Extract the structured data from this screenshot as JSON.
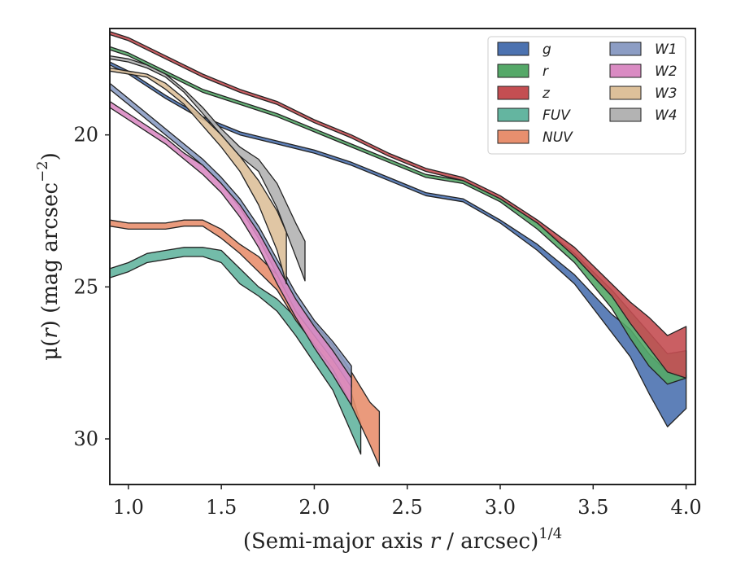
{
  "chart_data": {
    "type": "area",
    "title": "",
    "xlabel_parts": {
      "prefix": "(Semi-major axis ",
      "var": "r",
      "suffix": " / arcsec)",
      "exponent": "1/4"
    },
    "ylabel_parts": {
      "prefix": "μ(",
      "var": "r",
      "suffix": ") (mag arcsec",
      "exponent": "−2",
      "close": ")"
    },
    "xlim": [
      0.9,
      4.05
    ],
    "ylim": [
      31.5,
      16.5
    ],
    "y_inverted": true,
    "x_ticks": [
      1.0,
      1.5,
      2.0,
      2.5,
      3.0,
      3.5,
      4.0
    ],
    "x_tick_labels": [
      "1.0",
      "1.5",
      "2.0",
      "2.5",
      "3.0",
      "3.5",
      "4.0"
    ],
    "y_ticks": [
      20,
      25,
      30
    ],
    "y_tick_labels": [
      "20",
      "25",
      "30"
    ],
    "grid": false,
    "legend_placement": "top-right",
    "legend_columns": 2,
    "series": [
      {
        "name": "g",
        "color": "#4C72B0",
        "x": [
          0.9,
          1.0,
          1.2,
          1.4,
          1.6,
          1.8,
          2.0,
          2.2,
          2.4,
          2.6,
          2.8,
          3.0,
          3.2,
          3.4,
          3.6,
          3.7,
          3.8,
          3.9,
          4.0
        ],
        "y_low": [
          17.6,
          17.9,
          18.7,
          19.4,
          19.9,
          20.2,
          20.5,
          20.9,
          21.4,
          21.9,
          22.1,
          22.8,
          23.6,
          24.6,
          25.9,
          26.4,
          27.2,
          27.8,
          27.9
        ],
        "y_high": [
          17.7,
          18.0,
          18.8,
          19.5,
          20.0,
          20.3,
          20.6,
          21.0,
          21.5,
          22.0,
          22.2,
          22.9,
          23.8,
          24.9,
          26.5,
          27.3,
          28.5,
          29.6,
          29.0
        ]
      },
      {
        "name": "r",
        "color": "#55A868",
        "x": [
          0.9,
          1.0,
          1.2,
          1.4,
          1.6,
          1.8,
          2.0,
          2.2,
          2.4,
          2.6,
          2.8,
          3.0,
          3.2,
          3.4,
          3.6,
          3.7,
          3.8,
          3.9,
          4.0
        ],
        "y_low": [
          17.1,
          17.3,
          17.9,
          18.5,
          18.9,
          19.3,
          19.8,
          20.3,
          20.8,
          21.3,
          21.5,
          22.1,
          22.9,
          23.9,
          25.1,
          25.8,
          26.5,
          27.2,
          27.1
        ],
        "y_high": [
          17.2,
          17.4,
          18.0,
          18.6,
          19.0,
          19.4,
          19.9,
          20.4,
          20.9,
          21.4,
          21.6,
          22.2,
          23.1,
          24.2,
          25.7,
          26.7,
          27.6,
          28.2,
          28.0
        ]
      },
      {
        "name": "z",
        "color": "#C44E52",
        "x": [
          0.9,
          1.0,
          1.2,
          1.4,
          1.6,
          1.8,
          2.0,
          2.2,
          2.4,
          2.6,
          2.8,
          3.0,
          3.2,
          3.4,
          3.6,
          3.7,
          3.8,
          3.9,
          4.0
        ],
        "y_low": [
          16.6,
          16.8,
          17.4,
          18.0,
          18.5,
          18.9,
          19.5,
          20.0,
          20.6,
          21.1,
          21.4,
          22.0,
          22.8,
          23.7,
          24.9,
          25.5,
          26.0,
          26.6,
          26.3
        ],
        "y_high": [
          16.7,
          16.9,
          17.5,
          18.1,
          18.6,
          19.0,
          19.6,
          20.1,
          20.7,
          21.2,
          21.5,
          22.1,
          22.9,
          24.0,
          25.3,
          26.2,
          27.0,
          27.8,
          28.0
        ]
      },
      {
        "name": "FUV",
        "color": "#64B5A0",
        "x": [
          0.9,
          1.0,
          1.1,
          1.2,
          1.3,
          1.4,
          1.5,
          1.6,
          1.7,
          1.8,
          1.9,
          2.0,
          2.1,
          2.2,
          2.25
        ],
        "y_low": [
          24.4,
          24.2,
          23.9,
          23.8,
          23.7,
          23.7,
          23.8,
          24.4,
          25.0,
          25.4,
          26.0,
          26.8,
          27.5,
          28.5,
          29.5
        ],
        "y_high": [
          24.7,
          24.5,
          24.2,
          24.1,
          24.0,
          24.0,
          24.2,
          24.9,
          25.3,
          25.8,
          26.6,
          27.5,
          28.4,
          29.8,
          30.5
        ]
      },
      {
        "name": "NUV",
        "color": "#E88F6E",
        "x": [
          0.9,
          1.0,
          1.1,
          1.2,
          1.3,
          1.4,
          1.5,
          1.6,
          1.7,
          1.8,
          1.9,
          2.0,
          2.1,
          2.2,
          2.3,
          2.35
        ],
        "y_low": [
          22.8,
          22.9,
          22.9,
          22.9,
          22.8,
          22.8,
          23.1,
          23.6,
          24.0,
          24.6,
          25.5,
          26.2,
          26.9,
          27.8,
          28.8,
          29.1
        ],
        "y_high": [
          23.0,
          23.1,
          23.1,
          23.1,
          23.0,
          23.0,
          23.4,
          23.9,
          24.5,
          25.1,
          26.1,
          26.9,
          27.7,
          28.9,
          30.2,
          30.9
        ]
      },
      {
        "name": "W1",
        "color": "#8C9DC4",
        "x": [
          0.9,
          1.0,
          1.1,
          1.2,
          1.3,
          1.4,
          1.5,
          1.6,
          1.7,
          1.8,
          1.9,
          2.0,
          2.1,
          2.2
        ],
        "y_low": [
          18.3,
          18.8,
          19.3,
          19.8,
          20.3,
          20.8,
          21.4,
          22.1,
          23.0,
          24.1,
          25.2,
          26.1,
          26.8,
          27.6
        ],
        "y_high": [
          18.5,
          19.0,
          19.5,
          20.0,
          20.5,
          21.0,
          21.6,
          22.4,
          23.4,
          24.6,
          25.8,
          26.6,
          27.4,
          28.3
        ]
      },
      {
        "name": "W2",
        "color": "#DA8BC3",
        "x": [
          0.9,
          1.0,
          1.1,
          1.2,
          1.3,
          1.4,
          1.5,
          1.6,
          1.7,
          1.8,
          1.9,
          2.0,
          2.1,
          2.2
        ],
        "y_low": [
          18.9,
          19.3,
          19.7,
          20.1,
          20.6,
          21.0,
          21.6,
          22.3,
          23.2,
          24.3,
          25.4,
          26.3,
          27.1,
          28.0
        ],
        "y_high": [
          19.1,
          19.5,
          19.9,
          20.3,
          20.8,
          21.3,
          21.9,
          22.7,
          23.7,
          24.9,
          26.0,
          27.0,
          27.9,
          28.9
        ]
      },
      {
        "name": "W3",
        "color": "#DDC09A",
        "x": [
          0.9,
          1.0,
          1.1,
          1.2,
          1.3,
          1.4,
          1.5,
          1.6,
          1.7,
          1.8,
          1.85
        ],
        "y_low": [
          17.8,
          17.9,
          18.0,
          18.3,
          18.8,
          19.4,
          20.0,
          20.7,
          21.5,
          22.5,
          23.2
        ],
        "y_high": [
          17.9,
          18.0,
          18.1,
          18.5,
          19.0,
          19.7,
          20.4,
          21.2,
          22.3,
          23.8,
          24.9
        ]
      },
      {
        "name": "W4",
        "color": "#B3B3B3",
        "x": [
          0.9,
          1.0,
          1.1,
          1.2,
          1.3,
          1.4,
          1.5,
          1.6,
          1.7,
          1.8,
          1.9,
          1.95
        ],
        "y_low": [
          17.4,
          17.5,
          17.7,
          18.0,
          18.5,
          19.1,
          19.8,
          20.4,
          20.8,
          21.6,
          22.9,
          23.5
        ],
        "y_high": [
          17.5,
          17.6,
          17.8,
          18.1,
          18.6,
          19.3,
          20.0,
          20.7,
          21.2,
          22.4,
          24.0,
          24.8
        ]
      }
    ]
  }
}
